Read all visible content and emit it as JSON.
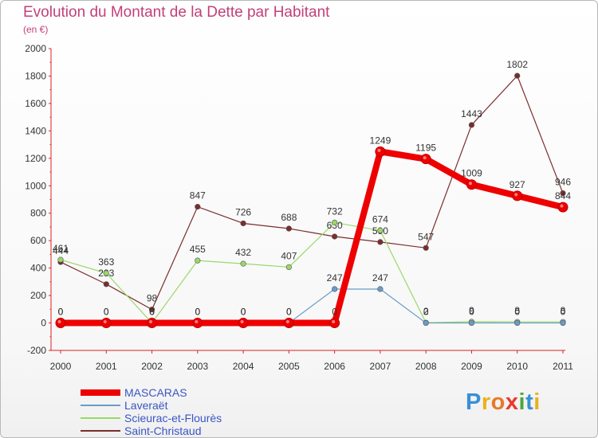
{
  "title": "Evolution du Montant de la Dette par Habitant",
  "subtitle": "(en €)",
  "logo": {
    "letters": [
      "P",
      "r",
      "o",
      "x",
      "i",
      "t",
      "i"
    ],
    "colors": [
      "#3a8fd6",
      "#e8b21c",
      "#e8792a",
      "#e83a2a",
      "#4aa83a",
      "#3a8fd6",
      "#e8b21c"
    ]
  },
  "chart_data": {
    "type": "line",
    "title": "Evolution du Montant de la Dette par Habitant",
    "ylabel": "(en €)",
    "xlabel": "",
    "ylim": [
      -200,
      2000
    ],
    "y_ticks": [
      "-200",
      "0",
      "200",
      "400",
      "600",
      "800",
      "1000",
      "1200",
      "1400",
      "1600",
      "1800",
      "2000"
    ],
    "categories": [
      "2000",
      "2001",
      "2002",
      "2003",
      "2004",
      "2005",
      "2006",
      "2007",
      "2008",
      "2009",
      "2010",
      "2011"
    ],
    "series": [
      {
        "name": "Saint-Christaud",
        "color": "#7b2d2d",
        "width": 1.2,
        "values": [
          444,
          283,
          98,
          847,
          726,
          688,
          630,
          590,
          547,
          1443,
          1802,
          946
        ],
        "labels": [
          "444",
          "283",
          "98",
          "847",
          "726",
          "688",
          "630",
          "590",
          "547",
          "1443",
          "1802",
          "946"
        ]
      },
      {
        "name": "Scieurac-et-Flourès",
        "color": "#9ad86a",
        "width": 1.2,
        "values": [
          461,
          363,
          0,
          455,
          432,
          407,
          732,
          674,
          2,
          9,
          8,
          8
        ],
        "labels": [
          "461",
          "363",
          "0",
          "455",
          "432",
          "407",
          "732",
          "674",
          "2",
          "9",
          "8",
          "8"
        ]
      },
      {
        "name": "Laveraët",
        "color": "#6a9cc8",
        "width": 1.2,
        "values": [
          0,
          0,
          0,
          0,
          0,
          0,
          247,
          247,
          0,
          0,
          0,
          0
        ],
        "labels": [
          "0",
          "0",
          "0",
          "0",
          "0",
          "0",
          "247",
          "247",
          "0",
          "0",
          "0",
          "0"
        ]
      },
      {
        "name": "MASCARAS",
        "color": "#ee0000",
        "width": 8,
        "values": [
          0,
          0,
          0,
          0,
          0,
          0,
          0,
          1249,
          1195,
          1009,
          927,
          844
        ],
        "labels": [
          "0",
          "0",
          "0",
          "0",
          "0",
          "0",
          "0",
          "1249",
          "1195",
          "1009",
          "927",
          "844"
        ]
      }
    ],
    "legend": [
      "MASCARAS",
      "Laveraët",
      "Scieurac-et-Flourès",
      "Saint-Christaud"
    ],
    "legend_position": "bottom-left",
    "grid": false
  }
}
